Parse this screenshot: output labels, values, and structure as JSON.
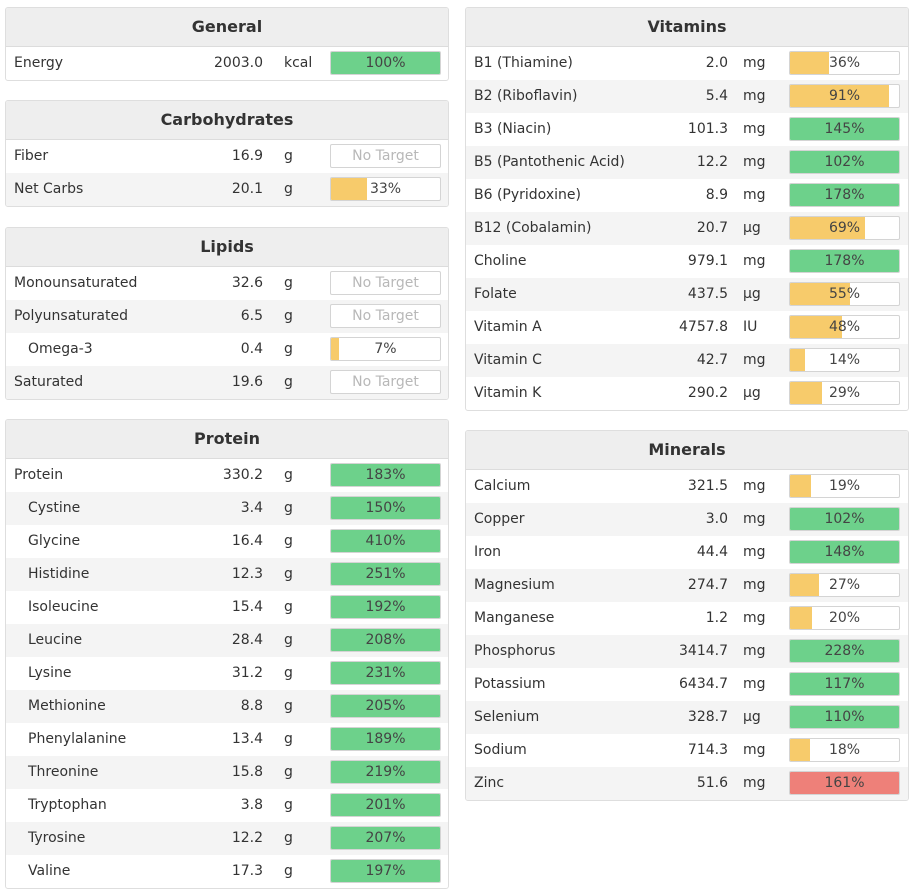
{
  "colors": {
    "green": "#6dd18b",
    "yellow": "#f7cb6b",
    "red": "#ee8079"
  },
  "general": {
    "title": "General",
    "rows": [
      {
        "name": "Energy",
        "amount": "2003.0",
        "unit": "kcal",
        "pct": "100%",
        "fill": 1.0,
        "color": "green"
      }
    ]
  },
  "carbohydrates": {
    "title": "Carbohydrates",
    "rows": [
      {
        "name": "Fiber",
        "amount": "16.9",
        "unit": "g",
        "pct": "No Target",
        "fill": 0,
        "color": "none"
      },
      {
        "name": "Net Carbs",
        "amount": "20.1",
        "unit": "g",
        "pct": "33%",
        "fill": 0.33,
        "color": "yellow"
      }
    ]
  },
  "lipids": {
    "title": "Lipids",
    "rows": [
      {
        "name": "Monounsaturated",
        "amount": "32.6",
        "unit": "g",
        "pct": "No Target",
        "fill": 0,
        "color": "none"
      },
      {
        "name": "Polyunsaturated",
        "amount": "6.5",
        "unit": "g",
        "pct": "No Target",
        "fill": 0,
        "color": "none"
      },
      {
        "name": "Omega-3",
        "amount": "0.4",
        "unit": "g",
        "pct": "7%",
        "fill": 0.07,
        "color": "yellow",
        "indent": true
      },
      {
        "name": "Saturated",
        "amount": "19.6",
        "unit": "g",
        "pct": "No Target",
        "fill": 0,
        "color": "none"
      }
    ]
  },
  "protein": {
    "title": "Protein",
    "rows": [
      {
        "name": "Protein",
        "amount": "330.2",
        "unit": "g",
        "pct": "183%",
        "fill": 1.0,
        "color": "green"
      },
      {
        "name": "Cystine",
        "amount": "3.4",
        "unit": "g",
        "pct": "150%",
        "fill": 1.0,
        "color": "green",
        "indent": true
      },
      {
        "name": "Glycine",
        "amount": "16.4",
        "unit": "g",
        "pct": "410%",
        "fill": 1.0,
        "color": "green",
        "indent": true
      },
      {
        "name": "Histidine",
        "amount": "12.3",
        "unit": "g",
        "pct": "251%",
        "fill": 1.0,
        "color": "green",
        "indent": true
      },
      {
        "name": "Isoleucine",
        "amount": "15.4",
        "unit": "g",
        "pct": "192%",
        "fill": 1.0,
        "color": "green",
        "indent": true
      },
      {
        "name": "Leucine",
        "amount": "28.4",
        "unit": "g",
        "pct": "208%",
        "fill": 1.0,
        "color": "green",
        "indent": true
      },
      {
        "name": "Lysine",
        "amount": "31.2",
        "unit": "g",
        "pct": "231%",
        "fill": 1.0,
        "color": "green",
        "indent": true
      },
      {
        "name": "Methionine",
        "amount": "8.8",
        "unit": "g",
        "pct": "205%",
        "fill": 1.0,
        "color": "green",
        "indent": true
      },
      {
        "name": "Phenylalanine",
        "amount": "13.4",
        "unit": "g",
        "pct": "189%",
        "fill": 1.0,
        "color": "green",
        "indent": true
      },
      {
        "name": "Threonine",
        "amount": "15.8",
        "unit": "g",
        "pct": "219%",
        "fill": 1.0,
        "color": "green",
        "indent": true
      },
      {
        "name": "Tryptophan",
        "amount": "3.8",
        "unit": "g",
        "pct": "201%",
        "fill": 1.0,
        "color": "green",
        "indent": true
      },
      {
        "name": "Tyrosine",
        "amount": "12.2",
        "unit": "g",
        "pct": "207%",
        "fill": 1.0,
        "color": "green",
        "indent": true
      },
      {
        "name": "Valine",
        "amount": "17.3",
        "unit": "g",
        "pct": "197%",
        "fill": 1.0,
        "color": "green",
        "indent": true
      }
    ]
  },
  "vitamins": {
    "title": "Vitamins",
    "rows": [
      {
        "name": "B1 (Thiamine)",
        "amount": "2.0",
        "unit": "mg",
        "pct": "36%",
        "fill": 0.36,
        "color": "yellow"
      },
      {
        "name": "B2 (Riboflavin)",
        "amount": "5.4",
        "unit": "mg",
        "pct": "91%",
        "fill": 0.91,
        "color": "yellow"
      },
      {
        "name": "B3 (Niacin)",
        "amount": "101.3",
        "unit": "mg",
        "pct": "145%",
        "fill": 1.0,
        "color": "green"
      },
      {
        "name": "B5 (Pantothenic Acid)",
        "amount": "12.2",
        "unit": "mg",
        "pct": "102%",
        "fill": 1.0,
        "color": "green"
      },
      {
        "name": "B6 (Pyridoxine)",
        "amount": "8.9",
        "unit": "mg",
        "pct": "178%",
        "fill": 1.0,
        "color": "green"
      },
      {
        "name": "B12 (Cobalamin)",
        "amount": "20.7",
        "unit": "µg",
        "pct": "69%",
        "fill": 0.69,
        "color": "yellow"
      },
      {
        "name": "Choline",
        "amount": "979.1",
        "unit": "mg",
        "pct": "178%",
        "fill": 1.0,
        "color": "green"
      },
      {
        "name": "Folate",
        "amount": "437.5",
        "unit": "µg",
        "pct": "55%",
        "fill": 0.55,
        "color": "yellow"
      },
      {
        "name": "Vitamin A",
        "amount": "4757.8",
        "unit": "IU",
        "pct": "48%",
        "fill": 0.48,
        "color": "yellow"
      },
      {
        "name": "Vitamin C",
        "amount": "42.7",
        "unit": "mg",
        "pct": "14%",
        "fill": 0.14,
        "color": "yellow"
      },
      {
        "name": "Vitamin K",
        "amount": "290.2",
        "unit": "µg",
        "pct": "29%",
        "fill": 0.29,
        "color": "yellow"
      }
    ]
  },
  "minerals": {
    "title": "Minerals",
    "rows": [
      {
        "name": "Calcium",
        "amount": "321.5",
        "unit": "mg",
        "pct": "19%",
        "fill": 0.19,
        "color": "yellow"
      },
      {
        "name": "Copper",
        "amount": "3.0",
        "unit": "mg",
        "pct": "102%",
        "fill": 1.0,
        "color": "green"
      },
      {
        "name": "Iron",
        "amount": "44.4",
        "unit": "mg",
        "pct": "148%",
        "fill": 1.0,
        "color": "green"
      },
      {
        "name": "Magnesium",
        "amount": "274.7",
        "unit": "mg",
        "pct": "27%",
        "fill": 0.27,
        "color": "yellow"
      },
      {
        "name": "Manganese",
        "amount": "1.2",
        "unit": "mg",
        "pct": "20%",
        "fill": 0.2,
        "color": "yellow"
      },
      {
        "name": "Phosphorus",
        "amount": "3414.7",
        "unit": "mg",
        "pct": "228%",
        "fill": 1.0,
        "color": "green"
      },
      {
        "name": "Potassium",
        "amount": "6434.7",
        "unit": "mg",
        "pct": "117%",
        "fill": 1.0,
        "color": "green"
      },
      {
        "name": "Selenium",
        "amount": "328.7",
        "unit": "µg",
        "pct": "110%",
        "fill": 1.0,
        "color": "green"
      },
      {
        "name": "Sodium",
        "amount": "714.3",
        "unit": "mg",
        "pct": "18%",
        "fill": 0.18,
        "color": "yellow"
      },
      {
        "name": "Zinc",
        "amount": "51.6",
        "unit": "mg",
        "pct": "161%",
        "fill": 1.0,
        "color": "red"
      }
    ]
  }
}
